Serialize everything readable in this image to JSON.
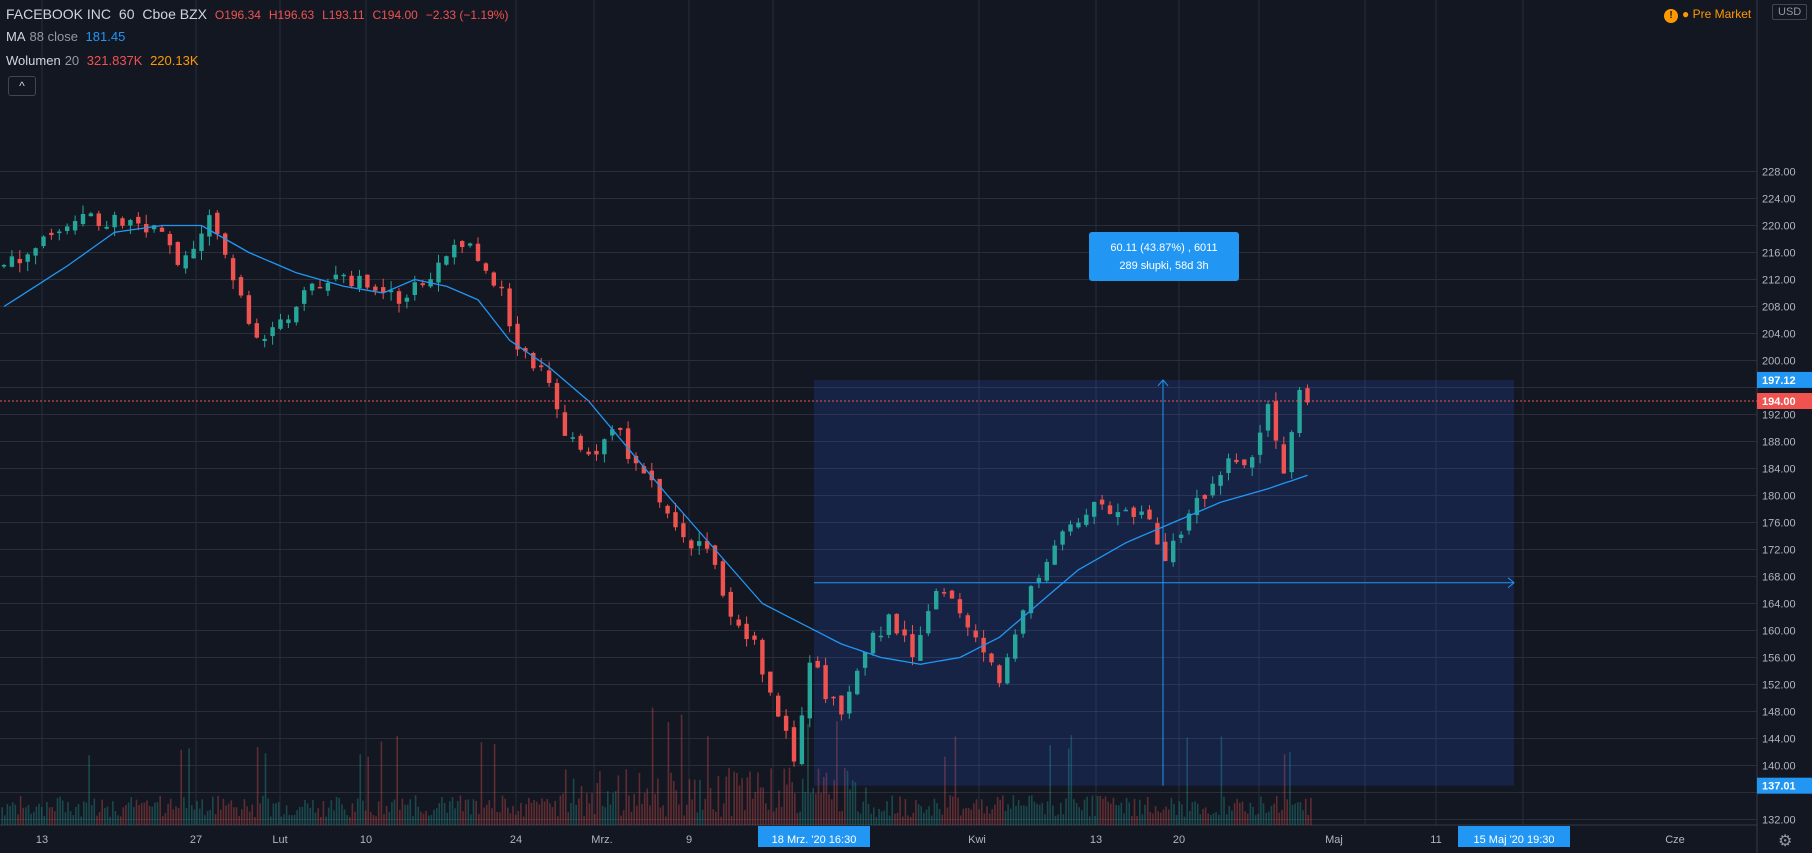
{
  "legend": {
    "symbol": "FACEBOOK INC",
    "interval": "60",
    "exchange": "Cboe BZX",
    "open": "O196.34",
    "high": "H196.63",
    "low": "L193.11",
    "close": "C194.00",
    "change": "−2.33 (−1.19%)",
    "ma_name": "MA",
    "ma_params": "88 close",
    "ma_value": "181.45",
    "vol_name": "Wolumen",
    "vol_param": "20",
    "vol_value1": "321.837K",
    "vol_value2": "220.13K"
  },
  "collapse_label": "^",
  "premarket": {
    "icon": "!",
    "label": "● Pre Market"
  },
  "currency": "USD",
  "price_axis": {
    "labels": [
      "228.00",
      "224.00",
      "220.00",
      "216.00",
      "212.00",
      "208.00",
      "204.00",
      "200.00",
      "192.00",
      "188.00",
      "184.00",
      "180.00",
      "176.00",
      "172.00",
      "168.00",
      "164.00",
      "160.00",
      "156.00",
      "152.00",
      "148.00",
      "144.00",
      "140.00",
      "132.00"
    ],
    "tags": [
      {
        "value": "197.12",
        "color": "#2196f3"
      },
      {
        "value": "194.00",
        "color": "#ef5350"
      },
      {
        "value": "137.01",
        "color": "#2196f3"
      }
    ]
  },
  "time_axis": {
    "labels": [
      "13",
      "27",
      "Lut",
      "10",
      "24",
      "Mrz.",
      "9",
      "Kwi",
      "13",
      "20",
      "Maj",
      "11",
      "Cze"
    ],
    "tags": [
      "18 Mrz. '20   16:30",
      "15 Maj '20   19:30"
    ]
  },
  "measure": {
    "line1": "60.11 (43.87%) , 6011",
    "line2": "289 słupki, 58d 3h"
  },
  "chart_data": {
    "type": "candlestick",
    "ylim": [
      130,
      232
    ],
    "colors": {
      "up": "#26a69a",
      "down": "#ef5350",
      "ma": "#2196f3",
      "range": "#2962ff"
    },
    "price_anchors": [
      [
        0,
        214
      ],
      [
        4,
        217
      ],
      [
        8,
        221
      ],
      [
        12,
        221
      ],
      [
        16,
        221
      ],
      [
        20,
        219
      ],
      [
        22,
        214
      ],
      [
        24,
        216
      ],
      [
        26,
        221
      ],
      [
        30,
        210
      ],
      [
        32,
        203
      ],
      [
        35,
        205
      ],
      [
        38,
        210
      ],
      [
        42,
        212
      ],
      [
        46,
        212
      ],
      [
        50,
        209
      ],
      [
        54,
        213
      ],
      [
        58,
        218
      ],
      [
        61,
        213
      ],
      [
        63,
        211
      ],
      [
        65,
        201
      ],
      [
        68,
        199
      ],
      [
        71,
        190
      ],
      [
        74,
        185
      ],
      [
        77,
        191
      ],
      [
        80,
        184
      ],
      [
        83,
        180
      ],
      [
        86,
        174
      ],
      [
        89,
        172
      ],
      [
        92,
        163
      ],
      [
        95,
        158
      ],
      [
        98,
        148
      ],
      [
        100,
        141
      ],
      [
        102,
        156
      ],
      [
        104,
        151
      ],
      [
        106,
        147
      ],
      [
        109,
        157
      ],
      [
        112,
        162
      ],
      [
        115,
        157
      ],
      [
        118,
        166
      ],
      [
        121,
        163
      ],
      [
        124,
        157
      ],
      [
        126,
        153
      ],
      [
        129,
        163
      ],
      [
        132,
        171
      ],
      [
        135,
        175
      ],
      [
        138,
        180
      ],
      [
        141,
        177
      ],
      [
        144,
        178
      ],
      [
        147,
        170
      ],
      [
        150,
        178
      ],
      [
        153,
        181
      ],
      [
        156,
        186
      ],
      [
        158,
        185
      ],
      [
        160,
        193
      ],
      [
        162,
        184
      ],
      [
        164,
        196
      ],
      [
        165,
        194
      ]
    ],
    "ma_anchors": [
      [
        0,
        208
      ],
      [
        8,
        214
      ],
      [
        14,
        219
      ],
      [
        20,
        220
      ],
      [
        25,
        220
      ],
      [
        31,
        216
      ],
      [
        37,
        213
      ],
      [
        43,
        211
      ],
      [
        48,
        210
      ],
      [
        52,
        212
      ],
      [
        56,
        211
      ],
      [
        60,
        209
      ],
      [
        64,
        203
      ],
      [
        69,
        199
      ],
      [
        74,
        194
      ],
      [
        79,
        187
      ],
      [
        84,
        180
      ],
      [
        90,
        172
      ],
      [
        96,
        164
      ],
      [
        101,
        161
      ],
      [
        106,
        158
      ],
      [
        111,
        156
      ],
      [
        116,
        155
      ],
      [
        121,
        156
      ],
      [
        126,
        159
      ],
      [
        131,
        164
      ],
      [
        136,
        169
      ],
      [
        142,
        173
      ],
      [
        148,
        176
      ],
      [
        154,
        179
      ],
      [
        160,
        181
      ],
      [
        165,
        183
      ]
    ],
    "measure_range": {
      "from_price": 137.01,
      "to_price": 197.12,
      "mid_price": 167.07
    }
  }
}
